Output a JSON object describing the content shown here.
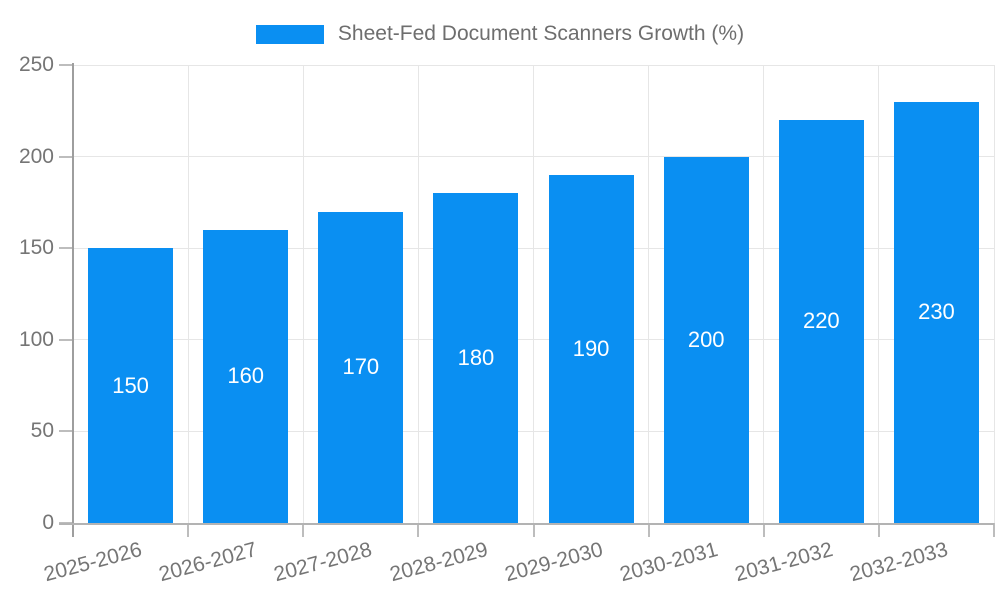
{
  "legend": {
    "label": "Sheet-Fed Document Scanners Growth (%)"
  },
  "colors": {
    "background": "#ffffff",
    "bar": "#0a8ff2",
    "grid": "#e6e6e6",
    "axis_y": "#9e9e9e",
    "axis_x": "#b3b3b3",
    "tick": "#bdbdbd",
    "tick_label": "#757575",
    "legend_text": "#6e6e6e",
    "bar_label": "#ffffff"
  },
  "chart_data": {
    "type": "bar",
    "title": "Sheet-Fed Document Scanners Growth (%)",
    "categories": [
      "2025-2026",
      "2026-2027",
      "2027-2028",
      "2028-2029",
      "2029-2030",
      "2030-2031",
      "2031-2032",
      "2032-2033"
    ],
    "values": [
      150,
      160,
      170,
      180,
      190,
      200,
      220,
      230
    ],
    "xlabel": "",
    "ylabel": "",
    "ylim": [
      0,
      250
    ],
    "yticks": [
      0,
      50,
      100,
      150,
      200,
      250
    ],
    "grid": true,
    "legend_position": "top-center",
    "value_labels": "inside-center",
    "x_label_rotation_deg": -15
  }
}
